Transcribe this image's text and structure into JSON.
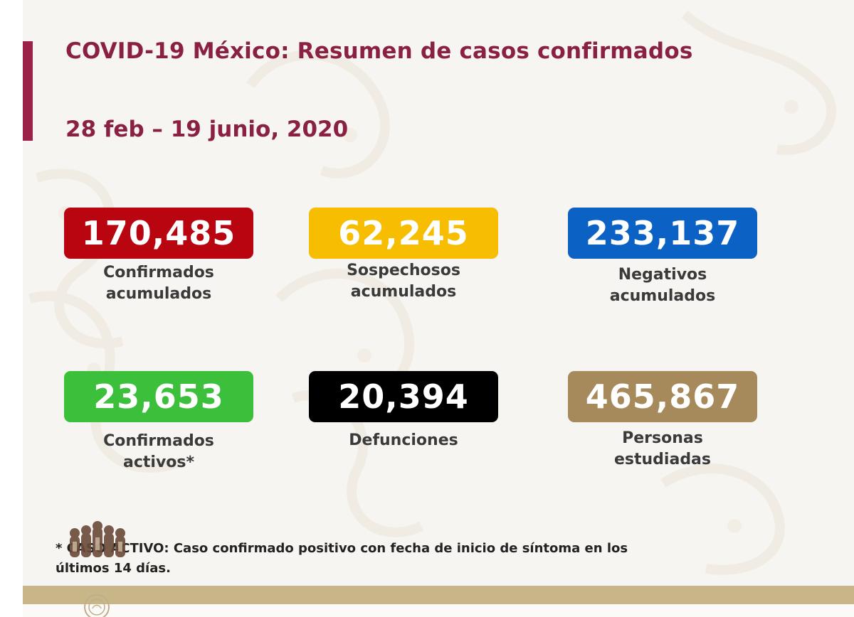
{
  "header": {
    "title": "COVID-19 México: Resumen de casos confirmados",
    "date_range": "28 feb – 19 junio, 2020"
  },
  "stats": [
    {
      "value": "170,485",
      "label_line1": "Confirmados",
      "label_line2": "acumulados",
      "color": "#b8050f"
    },
    {
      "value": "62,245",
      "label_line1": "Sospechosos",
      "label_line2": "acumulados",
      "color": "#f7bd00"
    },
    {
      "value": "233,137",
      "label_line1": "Negativos",
      "label_line2": "acumulados",
      "color": "#0b61c4"
    },
    {
      "value": "23,653",
      "label_line1": "Confirmados",
      "label_line2": "activos*",
      "color": "#3cc03c"
    },
    {
      "value": "20,394",
      "label_line1": "Defunciones",
      "label_line2": "",
      "color": "#000000"
    },
    {
      "value": "465,867",
      "label_line1": "Personas",
      "label_line2": "estudiadas",
      "color": "#a78a5b"
    }
  ],
  "footnote": {
    "line1": "* CASO ACTIVO: Caso confirmado positivo con fecha de inicio de síntoma en los",
    "line2": "últimos 14 días."
  },
  "colors": {
    "accent": "#9c2148",
    "title": "#8a2143",
    "footer_band": "#c8b588"
  },
  "icons": {
    "logo": "gobierno-de-mexico-logo",
    "seal": "national-seal-icon"
  }
}
